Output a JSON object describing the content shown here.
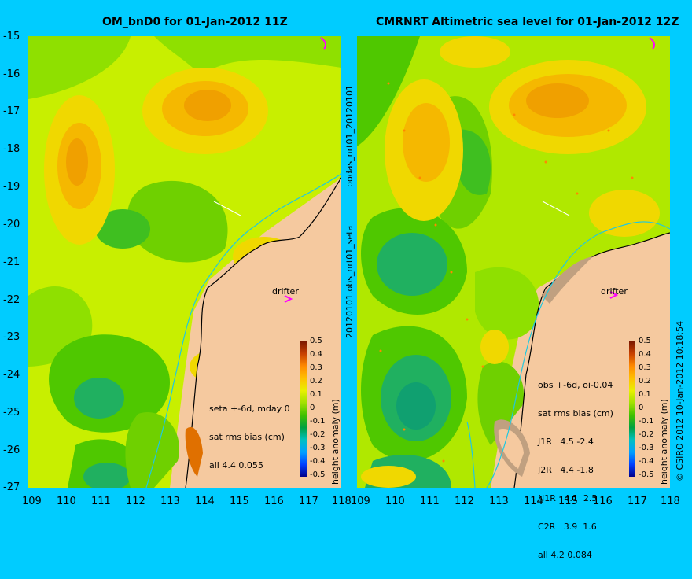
{
  "left_panel": {
    "title": "OM_bnD0 for 01-Jan-2012 11Z",
    "stats": [
      "seta +-6d, mday 0",
      "sat rms bias (cm)",
      "all 4.4 0.055"
    ],
    "drifter_label": "drifter"
  },
  "right_panel": {
    "title": "CMRNRT Altimetric sea level  for 01-Jan-2012 12Z",
    "stats": [
      "obs +-6d, oi-0.04",
      "sat rms bias (cm)",
      "J1R   4.5 -2.4",
      "J2R   4.4 -1.8",
      "N1R   4.1  2.5",
      "C2R   3.9  1.6",
      "all 4.2 0.084"
    ],
    "drifter_label": "drifter"
  },
  "y_ticks": [
    "-15",
    "-16",
    "-17",
    "-18",
    "-19",
    "-20",
    "-21",
    "-22",
    "-23",
    "-24",
    "-25",
    "-26",
    "-27"
  ],
  "x_ticks": [
    "109",
    "110",
    "111",
    "112",
    "113",
    "114",
    "115",
    "116",
    "117",
    "118"
  ],
  "colorbar": {
    "ticks": [
      "0.5",
      "0.4",
      "0.3",
      "0.2",
      "0.1",
      "0",
      "-0.1",
      "-0.2",
      "-0.3",
      "-0.4",
      "-0.5"
    ],
    "label": "height anomaly (m)"
  },
  "side_text_top": "bodas_nrt01_20120101",
  "side_text_bottom": "20120101.obs_nrt01_seta",
  "copyright": "© CSIRO 2012  10-Jan-2012 10:18:54",
  "colors": {
    "background": "#00ccff",
    "land": "#f5c99f",
    "drifter": "#ff00ff"
  }
}
